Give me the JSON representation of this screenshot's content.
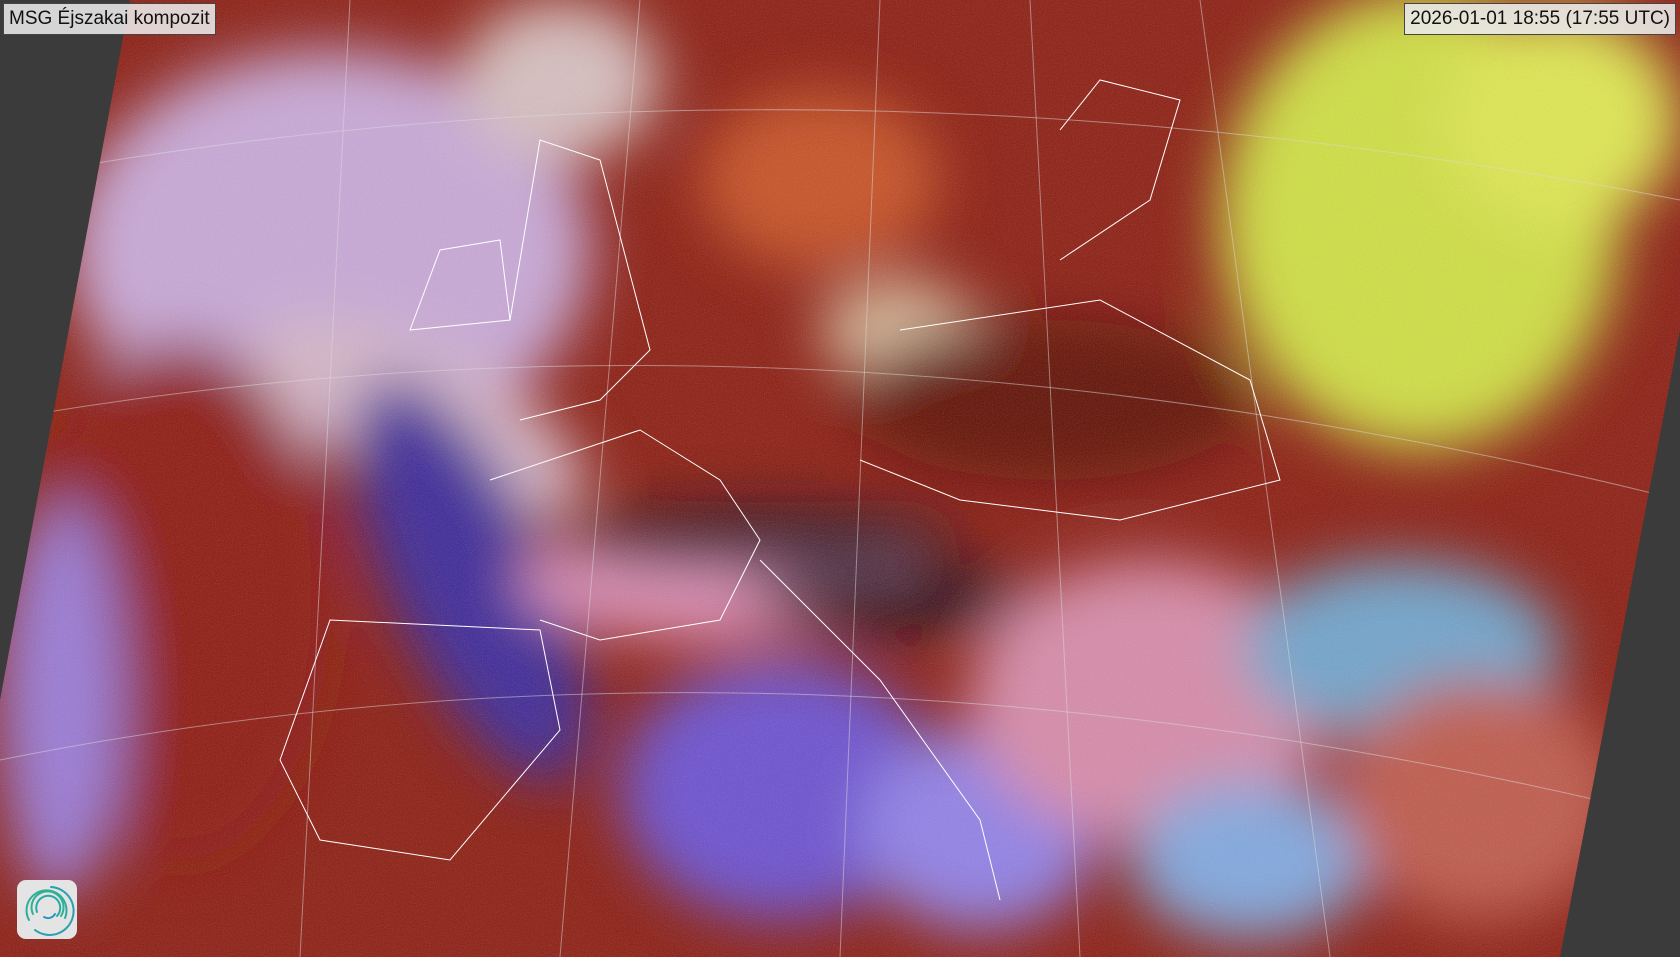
{
  "header": {
    "title": "MSG Éjszakai kompozit",
    "timestamp": "2026-01-01 18:55 (17:55 UTC)"
  },
  "map": {
    "type": "satellite-composite",
    "region": "Europe",
    "overlays": [
      "country-borders",
      "graticule"
    ],
    "colors": {
      "background": "#3b3b3b",
      "low-cloud": "#e89ab4",
      "high-cloud": "#8a2010",
      "sea": "#7aa0d8",
      "yellow-cloud": "#d8e040"
    }
  },
  "logo": {
    "icon": "swirl-logo-icon"
  }
}
